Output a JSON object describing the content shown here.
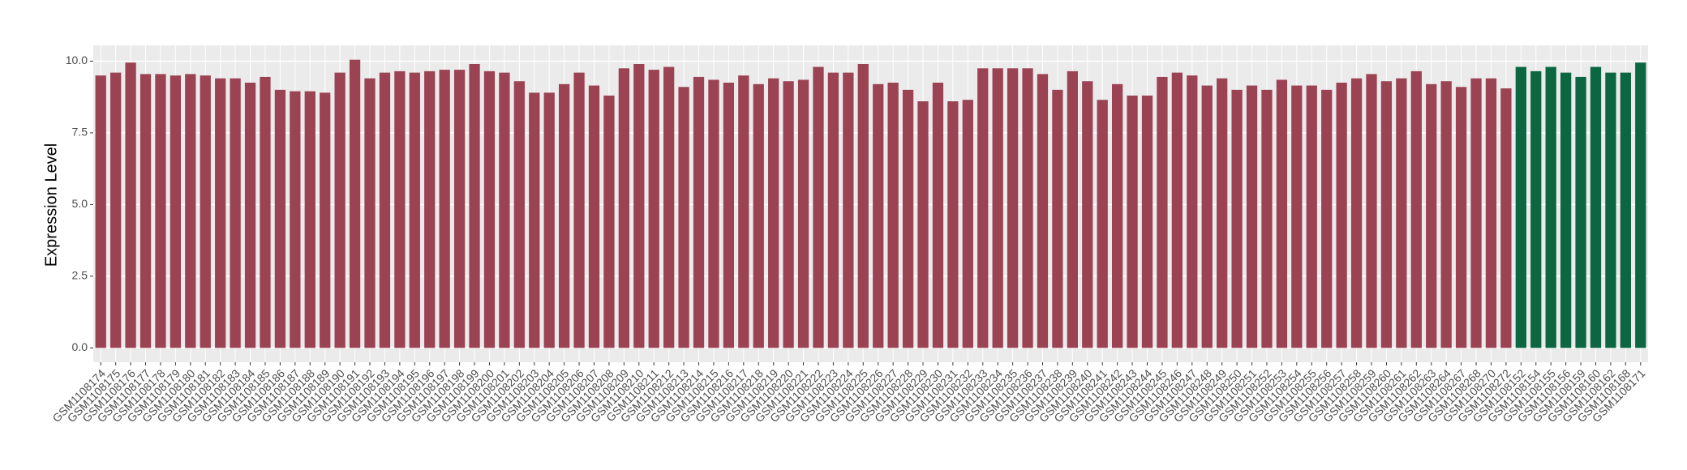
{
  "chart_data": {
    "type": "bar",
    "y_label": "Expression Level",
    "categories": [
      "GSM1108174",
      "GSM1108175",
      "GSM1108176",
      "GSM1108177",
      "GSM1108178",
      "GSM1108179",
      "GSM1108180",
      "GSM1108181",
      "GSM1108182",
      "GSM1108183",
      "GSM1108184",
      "GSM1108185",
      "GSM1108186",
      "GSM1108187",
      "GSM1108188",
      "GSM1108189",
      "GSM1108190",
      "GSM1108191",
      "GSM1108192",
      "GSM1108193",
      "GSM1108194",
      "GSM1108195",
      "GSM1108196",
      "GSM1108197",
      "GSM1108198",
      "GSM1108199",
      "GSM1108200",
      "GSM1108201",
      "GSM1108202",
      "GSM1108203",
      "GSM1108204",
      "GSM1108205",
      "GSM1108206",
      "GSM1108207",
      "GSM1108208",
      "GSM1108209",
      "GSM1108210",
      "GSM1108211",
      "GSM1108212",
      "GSM1108213",
      "GSM1108214",
      "GSM1108215",
      "GSM1108216",
      "GSM1108217",
      "GSM1108218",
      "GSM1108219",
      "GSM1108220",
      "GSM1108221",
      "GSM1108222",
      "GSM1108223",
      "GSM1108224",
      "GSM1108225",
      "GSM1108226",
      "GSM1108227",
      "GSM1108228",
      "GSM1108229",
      "GSM1108230",
      "GSM1108231",
      "GSM1108232",
      "GSM1108233",
      "GSM1108234",
      "GSM1108235",
      "GSM1108236",
      "GSM1108237",
      "GSM1108238",
      "GSM1108239",
      "GSM1108240",
      "GSM1108241",
      "GSM1108242",
      "GSM1108243",
      "GSM1108244",
      "GSM1108245",
      "GSM1108246",
      "GSM1108247",
      "GSM1108248",
      "GSM1108249",
      "GSM1108250",
      "GSM1108251",
      "GSM1108252",
      "GSM1108253",
      "GSM1108254",
      "GSM1108255",
      "GSM1108256",
      "GSM1108257",
      "GSM1108258",
      "GSM1108259",
      "GSM1108260",
      "GSM1108261",
      "GSM1108262",
      "GSM1108263",
      "GSM1108264",
      "GSM1108267",
      "GSM1108268",
      "GSM1108270",
      "GSM1108272",
      "GSM1108152",
      "GSM1108154",
      "GSM1108155",
      "GSM1108156",
      "GSM1108159",
      "GSM1108160",
      "GSM1108162",
      "GSM1108168",
      "GSM1108171"
    ],
    "values": [
      9.5,
      9.6,
      9.95,
      9.55,
      9.55,
      9.5,
      9.55,
      9.5,
      9.4,
      9.4,
      9.25,
      9.45,
      9.0,
      8.95,
      8.95,
      8.9,
      9.6,
      10.05,
      9.4,
      9.6,
      9.65,
      9.6,
      9.65,
      9.7,
      9.7,
      9.9,
      9.65,
      9.6,
      9.3,
      8.9,
      8.9,
      9.2,
      9.6,
      9.15,
      8.8,
      9.75,
      9.9,
      9.7,
      9.8,
      9.1,
      9.45,
      9.35,
      9.25,
      9.5,
      9.2,
      9.4,
      9.3,
      9.35,
      9.8,
      9.6,
      9.6,
      9.9,
      9.2,
      9.25,
      9.0,
      8.6,
      9.25,
      8.6,
      8.65,
      9.75,
      9.75,
      9.75,
      9.75,
      9.55,
      9.0,
      9.65,
      9.3,
      8.65,
      9.2,
      8.8,
      8.8,
      9.45,
      9.6,
      9.5,
      9.15,
      9.4,
      9.0,
      9.15,
      9.0,
      9.35,
      9.15,
      9.15,
      9.0,
      9.25,
      9.4,
      9.55,
      9.3,
      9.4,
      9.65,
      9.2,
      9.3,
      9.1,
      9.4,
      9.4,
      9.05,
      9.8,
      9.65,
      9.8,
      9.6,
      9.45,
      9.8,
      9.6,
      9.6,
      9.95
    ],
    "colors": [
      "#9b4352",
      "#9b4352",
      "#9b4352",
      "#9b4352",
      "#9b4352",
      "#9b4352",
      "#9b4352",
      "#9b4352",
      "#9b4352",
      "#9b4352",
      "#9b4352",
      "#9b4352",
      "#9b4352",
      "#9b4352",
      "#9b4352",
      "#9b4352",
      "#9b4352",
      "#9b4352",
      "#9b4352",
      "#9b4352",
      "#9b4352",
      "#9b4352",
      "#9b4352",
      "#9b4352",
      "#9b4352",
      "#9b4352",
      "#9b4352",
      "#9b4352",
      "#9b4352",
      "#9b4352",
      "#9b4352",
      "#9b4352",
      "#9b4352",
      "#9b4352",
      "#9b4352",
      "#9b4352",
      "#9b4352",
      "#9b4352",
      "#9b4352",
      "#9b4352",
      "#9b4352",
      "#9b4352",
      "#9b4352",
      "#9b4352",
      "#9b4352",
      "#9b4352",
      "#9b4352",
      "#9b4352",
      "#9b4352",
      "#9b4352",
      "#9b4352",
      "#9b4352",
      "#9b4352",
      "#9b4352",
      "#9b4352",
      "#9b4352",
      "#9b4352",
      "#9b4352",
      "#9b4352",
      "#9b4352",
      "#9b4352",
      "#9b4352",
      "#9b4352",
      "#9b4352",
      "#9b4352",
      "#9b4352",
      "#9b4352",
      "#9b4352",
      "#9b4352",
      "#9b4352",
      "#9b4352",
      "#9b4352",
      "#9b4352",
      "#9b4352",
      "#9b4352",
      "#9b4352",
      "#9b4352",
      "#9b4352",
      "#9b4352",
      "#9b4352",
      "#9b4352",
      "#9b4352",
      "#9b4352",
      "#9b4352",
      "#9b4352",
      "#9b4352",
      "#9b4352",
      "#9b4352",
      "#9b4352",
      "#9b4352",
      "#9b4352",
      "#9b4352",
      "#9b4352",
      "#9b4352",
      "#9b4352",
      "#0b6641",
      "#0b6641",
      "#0b6641",
      "#0b6641",
      "#0b6641",
      "#0b6641",
      "#0b6641",
      "#0b6641",
      "#0b6641"
    ],
    "ylim": [
      -0.5,
      10.55
    ],
    "yticks": [
      {
        "value": 0,
        "label": "0.0"
      },
      {
        "value": 2.5,
        "label": "2.5"
      },
      {
        "value": 5,
        "label": "5.0"
      },
      {
        "value": 7.5,
        "label": "7.5"
      },
      {
        "value": 10,
        "label": "10.0"
      }
    ],
    "grid": true
  }
}
